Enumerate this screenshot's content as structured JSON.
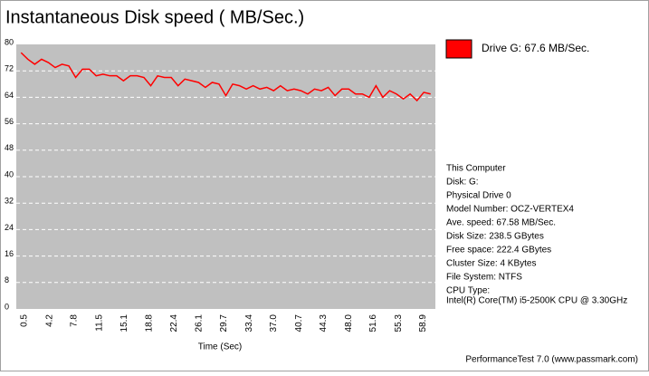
{
  "chart_data": {
    "type": "line",
    "title": "Instantaneous Disk speed ( MB/Sec.)",
    "x_label": "Time (Sec)",
    "x": [
      0,
      1,
      2,
      3,
      4,
      5,
      6,
      7,
      8,
      9,
      10,
      11,
      12,
      13,
      14,
      15,
      16,
      17,
      18,
      19,
      20,
      21,
      22,
      23,
      24,
      25,
      26,
      27,
      28,
      29,
      30,
      31,
      32,
      33,
      34,
      35,
      36,
      37,
      38,
      39,
      40,
      41,
      42,
      43,
      44,
      45,
      46,
      47,
      48,
      49,
      50,
      51,
      52,
      53,
      54,
      55,
      56,
      57,
      58,
      59,
      60
    ],
    "series": [
      {
        "name": "Drive G: 67.6 MB/Sec.",
        "color": "#ff0000",
        "values": [
          77.5,
          75.5,
          74,
          75.5,
          74.5,
          73,
          74,
          73.5,
          70,
          72.5,
          72.5,
          70.5,
          71,
          70.5,
          70.5,
          69,
          70.5,
          70.5,
          70,
          67.5,
          70.5,
          70,
          70,
          67.5,
          69.5,
          69,
          68.5,
          67,
          68.5,
          68,
          64.5,
          68,
          67.5,
          66.5,
          67.5,
          66.5,
          67,
          66,
          67.5,
          66,
          66.5,
          66,
          65,
          66.5,
          66,
          67,
          64.5,
          66.5,
          66.5,
          65,
          65,
          64,
          67.5,
          64,
          66,
          65,
          63.5,
          65,
          63,
          65.5,
          65
        ]
      }
    ],
    "xlim": [
      -0.7,
      60.7
    ],
    "xticks": [
      0.5,
      4.2,
      7.8,
      11.5,
      15.1,
      18.8,
      22.4,
      26.1,
      29.7,
      33.4,
      {
        "value": 37,
        "label": "37.0"
      },
      40.7,
      44.3,
      {
        "value": 48,
        "label": "48.0"
      },
      51.6,
      55.3,
      58.9
    ],
    "ylim": [
      0,
      80
    ],
    "yticks": [
      0,
      8,
      16,
      24,
      32,
      40,
      48,
      56,
      64,
      72,
      80
    ],
    "grid": true,
    "legend": "top-right"
  },
  "info_panel": [
    "This Computer",
    "Disk: G:",
    "Physical Drive 0",
    "Model Number: OCZ-VERTEX4",
    "Ave. speed: 67.58 MB/Sec.",
    "Disk Size: 238.5 GBytes",
    "Free space: 222.4 GBytes",
    "Cluster Size: 4 KBytes",
    "File System: NTFS",
    "CPU Type:",
    "Intel(R) Core(TM) i5-2500K CPU @ 3.30GHz"
  ],
  "footer": "PerformanceTest 7.0 (www.passmark.com)"
}
